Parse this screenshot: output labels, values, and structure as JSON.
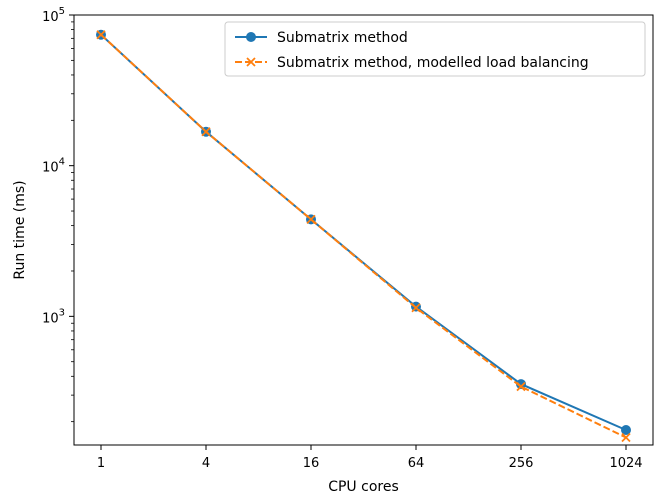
{
  "chart_data": {
    "type": "line",
    "title": "",
    "xlabel": "CPU cores",
    "ylabel": "Run time (ms)",
    "x_scale": "log2",
    "y_scale": "log10",
    "x_ticks": [
      "1",
      "4",
      "16",
      "64",
      "256",
      "1024"
    ],
    "y_ticks": [
      {
        "base": "10",
        "exp": "3"
      },
      {
        "base": "10",
        "exp": "4"
      },
      {
        "base": "10",
        "exp": "5"
      }
    ],
    "ylim": [
      140,
      100000
    ],
    "x": [
      1,
      4,
      16,
      64,
      256,
      1024
    ],
    "series": [
      {
        "name": "Submatrix method",
        "values": [
          74000,
          16800,
          4400,
          1160,
          355,
          176
        ],
        "color": "#1f77b4",
        "line_style": "solid",
        "marker": "circle"
      },
      {
        "name": "Submatrix method, modelled load balancing",
        "values": [
          74000,
          16800,
          4400,
          1140,
          342,
          157
        ],
        "color": "#ff7f0e",
        "line_style": "dashed",
        "marker": "x"
      }
    ],
    "legend_position": "top-right",
    "grid": false
  }
}
